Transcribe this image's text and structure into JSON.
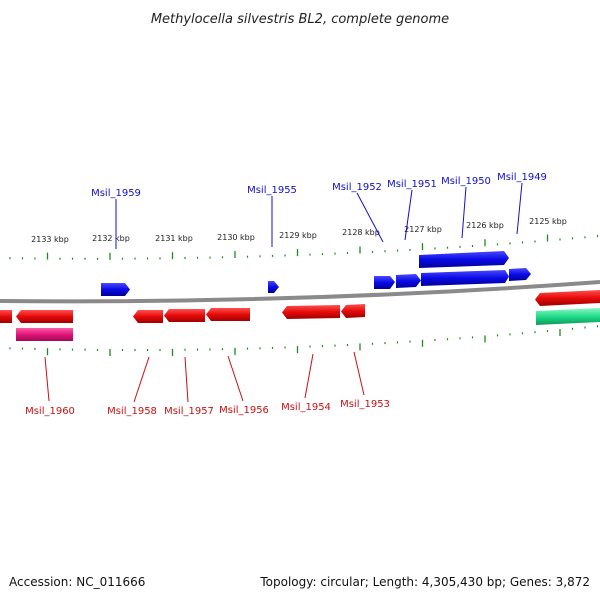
{
  "title": "Methylocella silvestris BL2, complete genome",
  "footer": {
    "accession": "Accession: NC_011666",
    "summary": "Topology: circular; Length: 4,305,430 bp; Genes: 3,872"
  },
  "colors": {
    "forward_gene": "#0a0ae6",
    "reverse_gene": "#e60a0a",
    "magenta_gene": "#e0157a",
    "teal_gene": "#1fdc8a",
    "backbone": "#8a8a8a",
    "tick": "#1e8a1e",
    "forward_label": "#1010c8",
    "reverse_label": "#c81010"
  },
  "scale_labels": [
    "2133 kbp",
    "2132 kbp",
    "2131 kbp",
    "2130 kbp",
    "2129 kbp",
    "2128 kbp",
    "2127 kbp",
    "2126 kbp",
    "2125 kbp"
  ],
  "forward_gene_labels": [
    "Msil_1959",
    "Msil_1955",
    "Msil_1952",
    "Msil_1951",
    "Msil_1950",
    "Msil_1949"
  ],
  "reverse_gene_labels": [
    "Msil_1960",
    "Msil_1958",
    "Msil_1957",
    "Msil_1956",
    "Msil_1954",
    "Msil_1953"
  ]
}
